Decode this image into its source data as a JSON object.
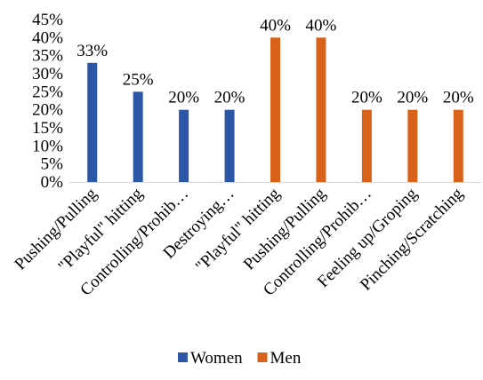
{
  "chart_data": {
    "type": "bar",
    "title": "",
    "xlabel": "",
    "ylabel": "",
    "ylim": [
      0,
      45
    ],
    "ytick_step": 5,
    "ytick_format": "percent",
    "grid": false,
    "legend_position": "bottom",
    "categories": [
      "Pushing/Pulling",
      "\"Playful\" hitting",
      "Controlling/Prohib…",
      "Destroying…",
      "\"Playful\" hitting",
      "Pushing/Pulling",
      "Controlling/Prohib…",
      "Feeling up/Groping",
      "Pinching/Scratching"
    ],
    "series": [
      {
        "name": "Women",
        "color": "#2E56A6",
        "values": [
          33,
          25,
          20,
          20,
          null,
          null,
          null,
          null,
          null
        ]
      },
      {
        "name": "Men",
        "color": "#D9621B",
        "values": [
          null,
          null,
          null,
          null,
          40,
          40,
          20,
          20,
          20
        ]
      }
    ]
  }
}
